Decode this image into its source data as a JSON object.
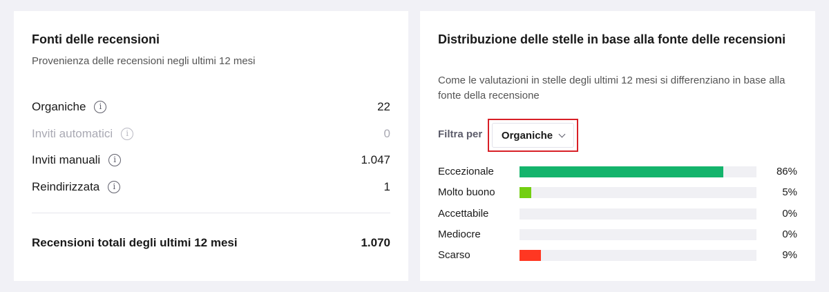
{
  "sources_card": {
    "title": "Fonti delle recensioni",
    "subtitle": "Provenienza delle recensioni negli ultimi 12 mesi",
    "rows": [
      {
        "label": "Organiche",
        "value": "22",
        "muted": false,
        "info_icon": "info-icon"
      },
      {
        "label": "Inviti automatici",
        "value": "0",
        "muted": true,
        "info_icon": "info-icon"
      },
      {
        "label": "Inviti manuali",
        "value": "1.047",
        "muted": false,
        "info_icon": "info-icon"
      },
      {
        "label": "Reindirizzata",
        "value": "1",
        "muted": false,
        "info_icon": "info-icon"
      }
    ],
    "total_label": "Recensioni totali degli ultimi 12 mesi",
    "total_value": "1.070"
  },
  "distribution_card": {
    "title": "Distribuzione delle stelle in base alla fonte delle recensioni",
    "subtitle": "Come le valutazioni in stelle degli ultimi 12 mesi si differenziano in base alla fonte della recensione",
    "filter_label": "Filtra per",
    "filter_value": "Organiche",
    "highlight_color": "#d81f26",
    "rows": [
      {
        "label": "Eccezionale",
        "percent": 86,
        "percent_label": "86%",
        "color": "#14b46c"
      },
      {
        "label": "Molto buono",
        "percent": 5,
        "percent_label": "5%",
        "color": "#73cf11"
      },
      {
        "label": "Accettabile",
        "percent": 0,
        "percent_label": "0%",
        "color": "#ffce00"
      },
      {
        "label": "Mediocre",
        "percent": 0,
        "percent_label": "0%",
        "color": "#ff8622"
      },
      {
        "label": "Scarso",
        "percent": 9,
        "percent_label": "9%",
        "color": "#ff3722"
      }
    ]
  }
}
